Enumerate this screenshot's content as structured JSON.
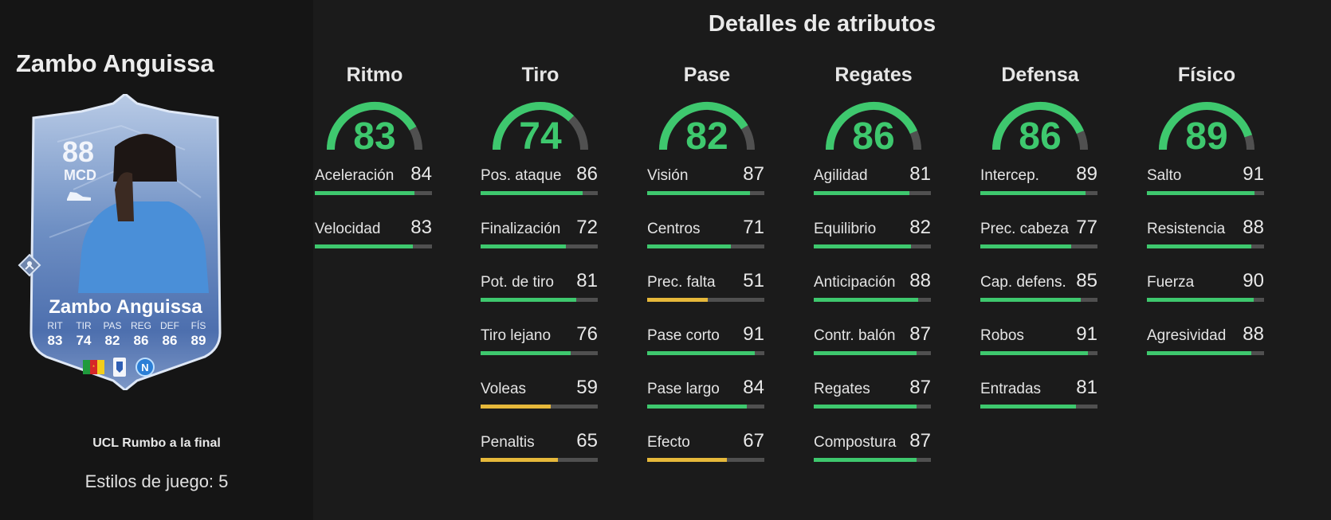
{
  "player": {
    "name": "Zambo Anguissa",
    "rating": "88",
    "position": "MCD",
    "promo": "UCL Rumbo a la final",
    "playstyles": "Estilos de juego: 5",
    "card_stats": [
      {
        "label": "RIT",
        "value": "83"
      },
      {
        "label": "TIR",
        "value": "74"
      },
      {
        "label": "PAS",
        "value": "82"
      },
      {
        "label": "REG",
        "value": "86"
      },
      {
        "label": "DEF",
        "value": "86"
      },
      {
        "label": "FÍS",
        "value": "89"
      }
    ]
  },
  "title": "Detalles de atributos",
  "colors": {
    "good": "#3ec86e",
    "average": "#e6b83a",
    "track": "#505050",
    "background": "#1b1b1b"
  },
  "icons": [
    "football-boot-icon",
    "playstyle-diamond-icon",
    "cameroon-flag-icon",
    "serie-a-league-icon",
    "napoli-club-crest-icon"
  ],
  "categories": [
    {
      "name": "Ritmo",
      "value": "83",
      "stats": [
        {
          "name": "Aceleración",
          "value": "84"
        },
        {
          "name": "Velocidad",
          "value": "83"
        }
      ]
    },
    {
      "name": "Tiro",
      "value": "74",
      "stats": [
        {
          "name": "Pos. ataque",
          "value": "86"
        },
        {
          "name": "Finalización",
          "value": "72"
        },
        {
          "name": "Pot. de tiro",
          "value": "81"
        },
        {
          "name": "Tiro lejano",
          "value": "76"
        },
        {
          "name": "Voleas",
          "value": "59"
        },
        {
          "name": "Penaltis",
          "value": "65"
        }
      ]
    },
    {
      "name": "Pase",
      "value": "82",
      "stats": [
        {
          "name": "Visión",
          "value": "87"
        },
        {
          "name": "Centros",
          "value": "71"
        },
        {
          "name": "Prec. falta",
          "value": "51"
        },
        {
          "name": "Pase corto",
          "value": "91"
        },
        {
          "name": "Pase largo",
          "value": "84"
        },
        {
          "name": "Efecto",
          "value": "67"
        }
      ]
    },
    {
      "name": "Regates",
      "value": "86",
      "stats": [
        {
          "name": "Agilidad",
          "value": "81"
        },
        {
          "name": "Equilibrio",
          "value": "82"
        },
        {
          "name": "Anticipación",
          "value": "88"
        },
        {
          "name": "Contr. balón",
          "value": "87"
        },
        {
          "name": "Regates",
          "value": "87"
        },
        {
          "name": "Compostura",
          "value": "87"
        }
      ]
    },
    {
      "name": "Defensa",
      "value": "86",
      "stats": [
        {
          "name": "Intercep.",
          "value": "89"
        },
        {
          "name": "Prec. cabeza",
          "value": "77"
        },
        {
          "name": "Cap. defens.",
          "value": "85"
        },
        {
          "name": "Robos",
          "value": "91"
        },
        {
          "name": "Entradas",
          "value": "81"
        }
      ]
    },
    {
      "name": "Físico",
      "value": "89",
      "stats": [
        {
          "name": "Salto",
          "value": "91"
        },
        {
          "name": "Resistencia",
          "value": "88"
        },
        {
          "name": "Fuerza",
          "value": "90"
        },
        {
          "name": "Agresividad",
          "value": "88"
        }
      ]
    }
  ]
}
